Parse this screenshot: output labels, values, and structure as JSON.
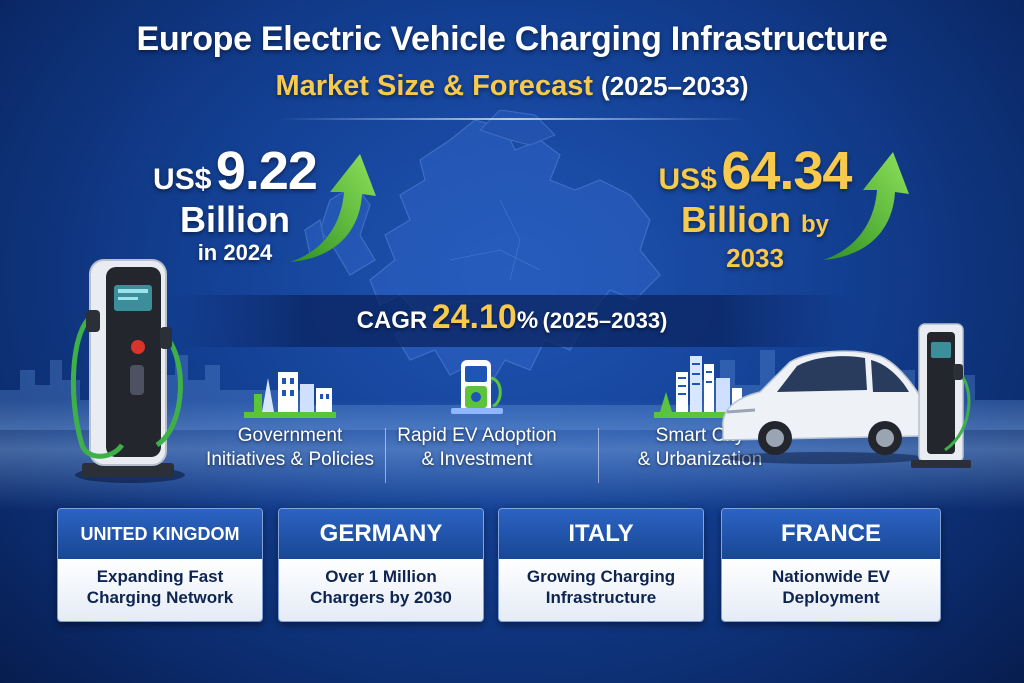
{
  "header": {
    "title": "Europe Electric Vehicle Charging Infrastructure",
    "subtitle_main": "Market Size & Forecast",
    "subtitle_years": "(2025–2033)"
  },
  "stats": {
    "current": {
      "currency": "US$",
      "value": "9.22",
      "unit": "Billion",
      "year_label": "in 2024"
    },
    "forecast": {
      "currency": "US$",
      "value": "64.34",
      "unit": "Billion",
      "by": "by",
      "year_label": "2033"
    }
  },
  "cagr": {
    "label": "CAGR",
    "value": "24.10",
    "suffix": "%",
    "range": "(2025–2033)"
  },
  "drivers": [
    {
      "line1": "Government",
      "line2": "Initiatives & Policies",
      "icon": "government-building-icon"
    },
    {
      "line1": "Rapid EV Adoption",
      "line2": "& Investment",
      "icon": "ev-charger-icon"
    },
    {
      "line1": "Smart City",
      "line2": "& Urbanization",
      "icon": "city-skyline-icon"
    }
  ],
  "regions": [
    {
      "name": "UNITED KINGDOM",
      "line1": "Expanding Fast",
      "line2": "Charging Network"
    },
    {
      "name": "GERMANY",
      "line1": "Over 1 Million",
      "line2": "Chargers by 2030"
    },
    {
      "name": "ITALY",
      "line1": "Growing Charging",
      "line2": "Infrastructure"
    },
    {
      "name": "FRANCE",
      "line1": "Nationwide EV",
      "line2": "Deployment"
    }
  ],
  "colors": {
    "background": "#133f92",
    "accent_gold": "#f7c94c",
    "arrow_green": "#5cc43a",
    "card_header": "#1f55b0",
    "card_text": "#0f2551"
  }
}
